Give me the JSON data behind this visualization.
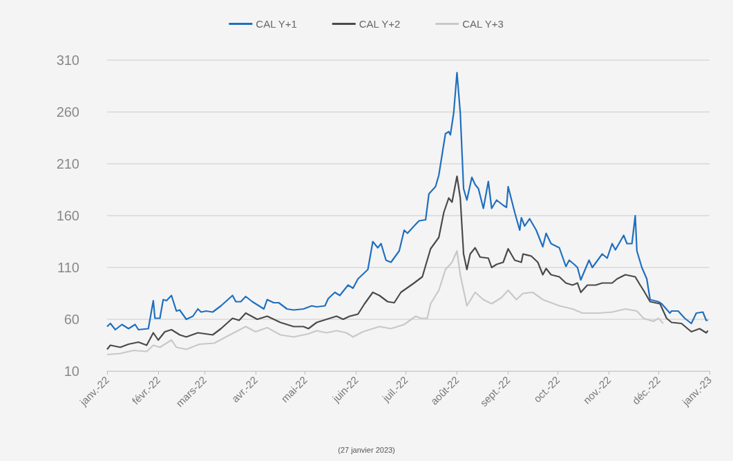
{
  "chart_data": {
    "type": "line",
    "annotations": [
      "(27 janvier 2023)"
    ],
    "xlim": [
      "2022-01-01",
      "2023-01-01"
    ],
    "xticks": [
      {
        "value": "2022-01-01",
        "label": "janv.-22"
      },
      {
        "value": "2022-02-01",
        "label": "févr.-22"
      },
      {
        "value": "2022-03-01",
        "label": "mars-22"
      },
      {
        "value": "2022-04-01",
        "label": "avr.-22"
      },
      {
        "value": "2022-05-01",
        "label": "mai-22"
      },
      {
        "value": "2022-06-01",
        "label": "juin-22"
      },
      {
        "value": "2022-07-01",
        "label": "juil.-22"
      },
      {
        "value": "2022-08-01",
        "label": "août-22"
      },
      {
        "value": "2022-09-01",
        "label": "sept.-22"
      },
      {
        "value": "2022-10-01",
        "label": "oct.-22"
      },
      {
        "value": "2022-11-01",
        "label": "nov.-22"
      },
      {
        "value": "2022-12-01",
        "label": "déc.-22"
      },
      {
        "value": "2023-01-01",
        "label": "janv.-23"
      }
    ],
    "ylim": [
      10,
      310
    ],
    "yticks": [
      10,
      60,
      110,
      160,
      210,
      260,
      310
    ],
    "grid": "y",
    "legend": "top",
    "marker": "none",
    "line_style": "solid",
    "series": [
      {
        "name": "CAL Y+1",
        "color": "#1f6fbf",
        "x": [
          "2022-01-01",
          "2022-01-03",
          "2022-01-06",
          "2022-01-10",
          "2022-01-14",
          "2022-01-18",
          "2022-01-20",
          "2022-01-26",
          "2022-01-29",
          "2022-01-30",
          "2022-02-02",
          "2022-02-04",
          "2022-02-06",
          "2022-02-09",
          "2022-02-12",
          "2022-02-14",
          "2022-02-18",
          "2022-02-22",
          "2022-02-25",
          "2022-02-27",
          "2022-03-02",
          "2022-03-06",
          "2022-03-11",
          "2022-03-18",
          "2022-03-20",
          "2022-03-23",
          "2022-03-26",
          "2022-03-30",
          "2022-04-06",
          "2022-04-08",
          "2022-04-12",
          "2022-04-15",
          "2022-04-20",
          "2022-04-24",
          "2022-04-30",
          "2022-05-05",
          "2022-05-08",
          "2022-05-13",
          "2022-05-15",
          "2022-05-19",
          "2022-05-22",
          "2022-05-27",
          "2022-05-30",
          "2022-06-02",
          "2022-06-08",
          "2022-06-11",
          "2022-06-14",
          "2022-06-16",
          "2022-06-19",
          "2022-06-22",
          "2022-06-27",
          "2022-06-30",
          "2022-07-02",
          "2022-07-06",
          "2022-07-09",
          "2022-07-13",
          "2022-07-15",
          "2022-07-19",
          "2022-07-21",
          "2022-07-25",
          "2022-07-27",
          "2022-07-28",
          "2022-07-30",
          "2022-08-01",
          "2022-08-03",
          "2022-08-05",
          "2022-08-07",
          "2022-08-10",
          "2022-08-12",
          "2022-08-14",
          "2022-08-17",
          "2022-08-20",
          "2022-08-22",
          "2022-08-25",
          "2022-08-29",
          "2022-08-31",
          "2022-09-01",
          "2022-09-05",
          "2022-09-08",
          "2022-09-09",
          "2022-09-11",
          "2022-09-14",
          "2022-09-18",
          "2022-09-22",
          "2022-09-24",
          "2022-09-27",
          "2022-10-02",
          "2022-10-06",
          "2022-10-08",
          "2022-10-11",
          "2022-10-13",
          "2022-10-15",
          "2022-10-20",
          "2022-10-22",
          "2022-10-28",
          "2022-10-31",
          "2022-11-03",
          "2022-11-05",
          "2022-11-10",
          "2022-11-12",
          "2022-11-15",
          "2022-11-17",
          "2022-11-18",
          "2022-11-21",
          "2022-11-24",
          "2022-11-26",
          "2022-12-01",
          "2022-12-03",
          "2022-12-08",
          "2022-12-09",
          "2022-12-13",
          "2022-12-17",
          "2022-12-21",
          "2022-12-24",
          "2022-12-28",
          "2022-12-30",
          "2022-12-31"
        ],
        "values": [
          53,
          56,
          50,
          55,
          51,
          55,
          50,
          51,
          78,
          61,
          61,
          79,
          78,
          83,
          68,
          69,
          60,
          63,
          70,
          67,
          68,
          67,
          73,
          83,
          77,
          77,
          82,
          77,
          70,
          79,
          76,
          76,
          70,
          69,
          70,
          73,
          72,
          73,
          80,
          86,
          83,
          93,
          90,
          99,
          108,
          135,
          129,
          133,
          117,
          115,
          126,
          146,
          143,
          150,
          155,
          156,
          181,
          188,
          199,
          239,
          241,
          238,
          259,
          298,
          259,
          186,
          175,
          197,
          190,
          186,
          167,
          193,
          167,
          175,
          170,
          168,
          188,
          163,
          146,
          158,
          150,
          157,
          146,
          130,
          143,
          133,
          129,
          111,
          117,
          113,
          110,
          98,
          117,
          110,
          123,
          119,
          133,
          127,
          141,
          133,
          133,
          160,
          126,
          110,
          99,
          79,
          77,
          75,
          66,
          68,
          68,
          61,
          56,
          66,
          67,
          59,
          59
        ]
      },
      {
        "name": "CAL Y+2",
        "color": "#4a4a4a",
        "x": [
          "2022-01-01",
          "2022-01-03",
          "2022-01-09",
          "2022-01-14",
          "2022-01-20",
          "2022-01-25",
          "2022-01-29",
          "2022-02-01",
          "2022-02-05",
          "2022-02-09",
          "2022-02-14",
          "2022-02-18",
          "2022-02-25",
          "2022-03-06",
          "2022-03-11",
          "2022-03-18",
          "2022-03-22",
          "2022-03-26",
          "2022-04-02",
          "2022-04-08",
          "2022-04-16",
          "2022-04-24",
          "2022-04-30",
          "2022-05-03",
          "2022-05-08",
          "2022-05-14",
          "2022-05-20",
          "2022-05-24",
          "2022-05-28",
          "2022-06-02",
          "2022-06-06",
          "2022-06-11",
          "2022-06-15",
          "2022-06-20",
          "2022-06-24",
          "2022-06-28",
          "2022-07-06",
          "2022-07-11",
          "2022-07-16",
          "2022-07-21",
          "2022-07-24",
          "2022-07-27",
          "2022-07-29",
          "2022-08-01",
          "2022-08-03",
          "2022-08-05",
          "2022-08-07",
          "2022-08-09",
          "2022-08-12",
          "2022-08-15",
          "2022-08-20",
          "2022-08-22",
          "2022-08-25",
          "2022-08-29",
          "2022-09-01",
          "2022-09-05",
          "2022-09-09",
          "2022-09-10",
          "2022-09-15",
          "2022-09-19",
          "2022-09-22",
          "2022-09-24",
          "2022-09-27",
          "2022-10-02",
          "2022-10-06",
          "2022-10-10",
          "2022-10-13",
          "2022-10-15",
          "2022-10-19",
          "2022-10-24",
          "2022-10-28",
          "2022-11-03",
          "2022-11-06",
          "2022-11-11",
          "2022-11-17",
          "2022-11-20",
          "2022-11-22",
          "2022-11-26",
          "2022-12-02",
          "2022-12-06",
          "2022-12-09",
          "2022-12-15",
          "2022-12-21",
          "2022-12-26",
          "2022-12-30",
          "2022-12-31"
        ],
        "values": [
          31,
          35,
          33,
          36,
          38,
          35,
          47,
          40,
          48,
          50,
          45,
          43,
          47,
          45,
          51,
          61,
          59,
          66,
          60,
          63,
          57,
          53,
          53,
          51,
          57,
          60,
          63,
          60,
          63,
          65,
          75,
          86,
          83,
          77,
          76,
          86,
          95,
          101,
          128,
          139,
          163,
          177,
          173,
          198,
          177,
          123,
          108,
          123,
          129,
          120,
          119,
          110,
          113,
          115,
          128,
          117,
          115,
          123,
          121,
          115,
          103,
          109,
          103,
          101,
          95,
          93,
          95,
          86,
          93,
          93,
          95,
          95,
          99,
          103,
          101,
          93,
          88,
          77,
          75,
          61,
          57,
          56,
          48,
          51,
          47,
          49
        ]
      },
      {
        "name": "CAL Y+3",
        "color": "#c8c8c8",
        "x": [
          "2022-01-01",
          "2022-01-09",
          "2022-01-17",
          "2022-01-25",
          "2022-01-29",
          "2022-02-02",
          "2022-02-09",
          "2022-02-12",
          "2022-02-18",
          "2022-02-26",
          "2022-03-07",
          "2022-03-14",
          "2022-03-20",
          "2022-03-26",
          "2022-04-01",
          "2022-04-08",
          "2022-04-16",
          "2022-04-24",
          "2022-05-03",
          "2022-05-08",
          "2022-05-14",
          "2022-05-20",
          "2022-05-26",
          "2022-05-30",
          "2022-06-05",
          "2022-06-15",
          "2022-06-22",
          "2022-06-30",
          "2022-07-07",
          "2022-07-10",
          "2022-07-14",
          "2022-07-16",
          "2022-07-21",
          "2022-07-25",
          "2022-07-29",
          "2022-08-01",
          "2022-08-03",
          "2022-08-07",
          "2022-08-12",
          "2022-08-17",
          "2022-08-22",
          "2022-08-28",
          "2022-09-01",
          "2022-09-06",
          "2022-09-10",
          "2022-09-16",
          "2022-09-22",
          "2022-09-27",
          "2022-10-02",
          "2022-10-10",
          "2022-10-16",
          "2022-10-26",
          "2022-11-03",
          "2022-11-11",
          "2022-11-18",
          "2022-11-22",
          "2022-11-28",
          "2022-12-01",
          "2022-12-04"
        ],
        "values": [
          26,
          27,
          30,
          29,
          35,
          33,
          40,
          33,
          31,
          36,
          37,
          43,
          48,
          53,
          48,
          52,
          45,
          43,
          46,
          49,
          47,
          49,
          47,
          43,
          48,
          53,
          51,
          55,
          63,
          61,
          61,
          75,
          88,
          108,
          115,
          126,
          103,
          73,
          86,
          79,
          75,
          81,
          88,
          79,
          85,
          86,
          79,
          76,
          73,
          70,
          66,
          66,
          67,
          70,
          68,
          61,
          58,
          61,
          56
        ]
      }
    ]
  }
}
